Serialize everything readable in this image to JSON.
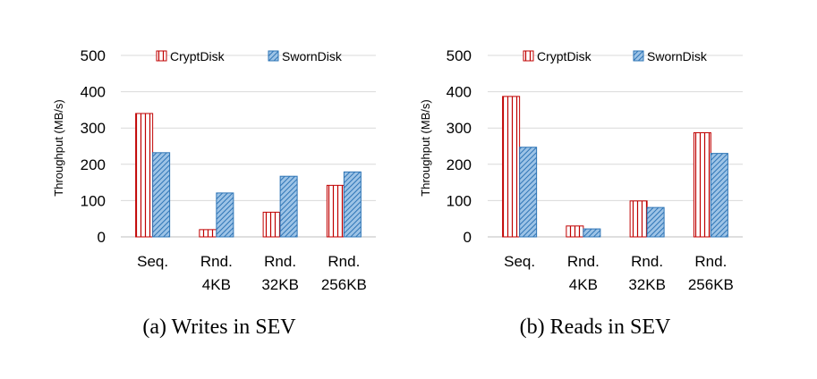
{
  "chart_data": [
    {
      "type": "bar",
      "caption": "(a) Writes in SEV",
      "ylabel": "Throughput (MB/s)",
      "ylim": [
        0,
        500
      ],
      "yticks": [
        "0",
        "100",
        "200",
        "300",
        "400",
        "500"
      ],
      "categories": [
        [
          "Seq."
        ],
        [
          "Rnd.",
          "4KB"
        ],
        [
          "Rnd.",
          "32KB"
        ],
        [
          "Rnd.",
          "256KB"
        ]
      ],
      "legend_position": "top",
      "grid": true,
      "series": [
        {
          "name": "CryptDisk",
          "values": [
            340,
            20,
            68,
            142
          ],
          "color": "#c00000",
          "pattern": "vertical-stripes"
        },
        {
          "name": "SwornDisk",
          "values": [
            232,
            121,
            167,
            179
          ],
          "color": "#2e75b6",
          "pattern": "diagonal-hatch"
        }
      ]
    },
    {
      "type": "bar",
      "caption": "(b) Reads in SEV",
      "ylabel": "Throughput (MB/s)",
      "ylim": [
        0,
        500
      ],
      "yticks": [
        "0",
        "100",
        "200",
        "300",
        "400",
        "500"
      ],
      "categories": [
        [
          "Seq."
        ],
        [
          "Rnd.",
          "4KB"
        ],
        [
          "Rnd.",
          "32KB"
        ],
        [
          "Rnd.",
          "256KB"
        ]
      ],
      "legend_position": "top",
      "grid": true,
      "series": [
        {
          "name": "CryptDisk",
          "values": [
            387,
            30,
            99,
            287
          ],
          "color": "#c00000",
          "pattern": "vertical-stripes"
        },
        {
          "name": "SwornDisk",
          "values": [
            247,
            22,
            81,
            230
          ],
          "color": "#2e75b6",
          "pattern": "diagonal-hatch"
        }
      ]
    }
  ]
}
